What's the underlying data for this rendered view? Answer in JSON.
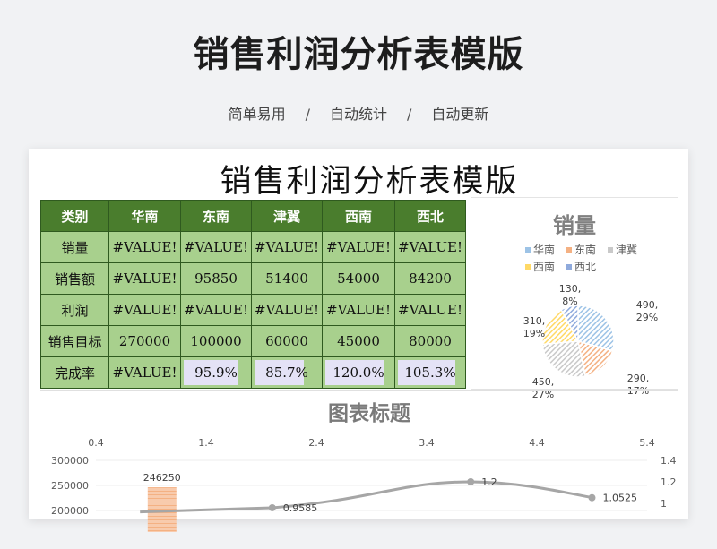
{
  "page": {
    "title": "销售利润分析表模版",
    "tags": [
      "简单易用",
      "自动统计",
      "自动更新"
    ],
    "separator": "/"
  },
  "sheet": {
    "title": "销售利润分析表模版",
    "header": [
      "类别",
      "华南",
      "东南",
      "津冀",
      "西南",
      "西北"
    ],
    "rows": [
      {
        "label": "销量",
        "cells": [
          "#VALUE!",
          "#VALUE!",
          "#VALUE!",
          "#VALUE!",
          "#VALUE!"
        ]
      },
      {
        "label": "销售额",
        "cells": [
          "#VALUE!",
          "95850",
          "51400",
          "54000",
          "84200"
        ]
      },
      {
        "label": "利润",
        "cells": [
          "#VALUE!",
          "#VALUE!",
          "#VALUE!",
          "#VALUE!",
          "#VALUE!"
        ]
      },
      {
        "label": "销售目标",
        "cells": [
          "270000",
          "100000",
          "60000",
          "45000",
          "80000"
        ]
      },
      {
        "label": "完成率",
        "cells": [
          "#VALUE!",
          "95.9%",
          "85.7%",
          "120.0%",
          "105.3%"
        ],
        "fill": [
          null,
          0.959,
          0.857,
          1.0,
          1.0
        ]
      }
    ]
  },
  "chart_data": [
    {
      "type": "pie",
      "title": "销量",
      "legend_position": "top",
      "slices": [
        {
          "name": "华南",
          "value": 490,
          "label": "490,",
          "pct": "29%",
          "color": "#9dc3e6"
        },
        {
          "name": "东南",
          "value": 290,
          "label": "290,",
          "pct": "17%",
          "color": "#f4b183"
        },
        {
          "name": "津冀",
          "value": 450,
          "label": "450,",
          "pct": "27%",
          "color": "#c9c9c9"
        },
        {
          "name": "西南",
          "value": 310,
          "label": "310,",
          "pct": "19%",
          "color": "#ffd966"
        },
        {
          "name": "西北",
          "value": 130,
          "label": "130,",
          "pct": "8%",
          "color": "#8faadc"
        }
      ]
    },
    {
      "type": "bar+line",
      "title": "图表标题",
      "x2_ticks": [
        "0.4",
        "1.4",
        "2.4",
        "3.4",
        "4.4",
        "5.4"
      ],
      "y_left_ticks": [
        "300000",
        "250000",
        "200000"
      ],
      "y_right_ticks": [
        "1.4",
        "1.2",
        "1"
      ],
      "ylim_left": [
        200000,
        300000
      ],
      "ylim_right": [
        0.8,
        1.4
      ],
      "bar": {
        "label": "246250",
        "value": 246250,
        "x": 1.0,
        "color": "#f4b183"
      },
      "line": {
        "color": "#a6a6a6",
        "points": [
          {
            "x": 2.0,
            "y": 0.9585,
            "label": "0.9585"
          },
          {
            "x": 3.8,
            "y": 1.2,
            "label": "1.2"
          },
          {
            "x": 4.9,
            "y": 1.0525,
            "label": "1.0525"
          }
        ]
      }
    }
  ]
}
